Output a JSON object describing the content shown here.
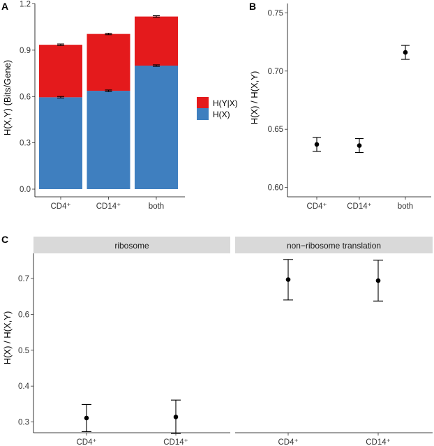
{
  "panels": {
    "a": {
      "label": "A"
    },
    "b": {
      "label": "B"
    },
    "c": {
      "label": "C"
    }
  },
  "chart_data": [
    {
      "id": "A",
      "type": "bar",
      "stacked": true,
      "categories": [
        "CD4⁺",
        "CD14⁺",
        "both"
      ],
      "series": [
        {
          "name": "H(X)",
          "key": "hx",
          "color": "#3f7fbf",
          "values": [
            0.595,
            0.637,
            0.8
          ]
        },
        {
          "name": "H(Y|X)",
          "key": "hyx",
          "color": "#e41a1c",
          "values": [
            0.34,
            0.368,
            0.318
          ]
        }
      ],
      "totals": [
        0.935,
        1.005,
        1.118
      ],
      "error_bars": {
        "hx": [
          [
            0.59,
            0.6
          ],
          [
            0.632,
            0.642
          ],
          [
            0.795,
            0.805
          ]
        ],
        "total": [
          [
            0.93,
            0.94
          ],
          [
            1.0,
            1.01
          ],
          [
            1.113,
            1.123
          ]
        ]
      },
      "ylabel": "H(X,Y) (Bits/Gene)",
      "xlabel": "",
      "ylim": [
        0,
        1.2
      ],
      "yticks": [
        0.0,
        0.3,
        0.6,
        0.9,
        1.2
      ],
      "ytick_labels": [
        "0.0",
        "0.3",
        "0.6",
        "0.9",
        "1.2"
      ],
      "legend": {
        "position": "right",
        "entries": [
          "H(Y|X)",
          "H(X)"
        ]
      },
      "grid": false
    },
    {
      "id": "B",
      "type": "scatter",
      "categories": [
        "CD4⁺",
        "CD14⁺",
        "both"
      ],
      "values": [
        0.637,
        0.636,
        0.716
      ],
      "error": [
        [
          0.631,
          0.643
        ],
        [
          0.63,
          0.642
        ],
        [
          0.71,
          0.722
        ]
      ],
      "ylabel": "H(X) / H(X,Y)",
      "xlabel": "",
      "ylim": [
        0.592,
        0.758
      ],
      "yticks": [
        0.6,
        0.65,
        0.7,
        0.75
      ],
      "ytick_labels": [
        "0.60",
        "0.65",
        "0.70",
        "0.75"
      ],
      "grid": false
    },
    {
      "id": "C",
      "type": "scatter",
      "facets": [
        {
          "title": "ribosome",
          "categories": [
            "CD4⁺",
            "CD14⁺"
          ],
          "values": [
            0.311,
            0.314
          ],
          "error": [
            [
              0.273,
              0.349
            ],
            [
              0.268,
              0.361
            ]
          ]
        },
        {
          "title": "non−ribosome translation",
          "categories": [
            "CD4⁺",
            "CD14⁺"
          ],
          "values": [
            0.697,
            0.694
          ],
          "error": [
            [
              0.64,
              0.753
            ],
            [
              0.637,
              0.751
            ]
          ]
        }
      ],
      "ylabel": "H(X) / H(X,Y)",
      "xlabel": "",
      "ylim": [
        0.27,
        0.77
      ],
      "yticks": [
        0.3,
        0.4,
        0.5,
        0.6,
        0.7
      ],
      "ytick_labels": [
        "0.3",
        "0.4",
        "0.5",
        "0.6",
        "0.7"
      ],
      "grid": false
    }
  ]
}
